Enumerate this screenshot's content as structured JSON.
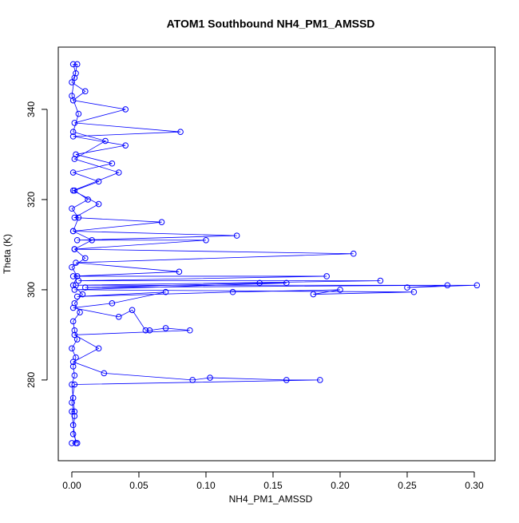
{
  "chart_data": {
    "type": "line",
    "markers": true,
    "title": "ATOM1 Southbound NH4_PM1_AMSSD",
    "x_label": "NH4_PM1_AMSSD",
    "y_label": "Theta (K)",
    "grid": false,
    "xlim": [
      -0.0101,
      0.3155
    ],
    "ylim": [
      262.1,
      353.8
    ],
    "xticks": [
      {
        "value": 0,
        "label": "0.00"
      },
      {
        "value": 0.05,
        "label": "0.05"
      },
      {
        "value": 0.1,
        "label": "0.10"
      },
      {
        "value": 0.15,
        "label": "0.15"
      },
      {
        "value": 0.2,
        "label": "0.20"
      },
      {
        "value": 0.25,
        "label": "0.25"
      },
      {
        "value": 0.3,
        "label": "0.30"
      }
    ],
    "yticks": [
      280,
      300,
      320,
      340
    ],
    "series": [
      {
        "color": "#0000ff",
        "x": [
          0.0,
          0.003,
          0.001,
          0.0,
          0.002,
          0.001,
          0.0,
          0.002,
          0.001,
          0.003,
          0.0,
          0.004,
          0.002,
          0.001,
          0.006,
          0.002,
          0.008,
          0.001,
          0.004,
          0.0,
          0.01,
          0.002,
          0.015,
          0.001,
          0.005,
          0.0,
          0.012,
          0.002,
          0.02,
          0.001,
          0.03,
          0.003,
          0.04,
          0.001,
          0.081,
          0.002,
          0.04,
          0.001,
          0.01,
          0.0,
          0.003,
          0.001,
          0.004,
          0.002,
          0.0,
          0.005,
          0.001,
          0.025,
          0.002,
          0.035,
          0.001,
          0.02,
          0.002,
          0.067,
          0.001,
          0.123,
          0.004,
          0.1,
          0.002,
          0.21,
          0.003,
          0.08,
          0.001,
          0.19,
          0.005,
          0.23,
          0.003,
          0.302,
          0.25,
          0.28,
          0.01,
          0.14,
          0.16,
          0.002,
          0.255,
          0.18,
          0.2,
          0.12,
          0.004,
          0.07,
          0.03,
          0.001,
          0.035,
          0.045,
          0.055,
          0.058,
          0.07,
          0.088,
          0.002,
          0.02,
          0.001,
          0.024,
          0.09,
          0.103,
          0.16,
          0.185,
          0.002,
          0.0,
          0.002,
          0.001,
          0.004
        ],
        "y": [
          266,
          266,
          270,
          273,
          273,
          276,
          279,
          281,
          283,
          285,
          287,
          289,
          291,
          293,
          295,
          297,
          299,
          301,
          303,
          305,
          307,
          309,
          311,
          313,
          316,
          318,
          320,
          322,
          324,
          326,
          328,
          330,
          332,
          334,
          335,
          337,
          340,
          342,
          344,
          346,
          348,
          350,
          350,
          347,
          343,
          339,
          335,
          333,
          329,
          326,
          322,
          319,
          316,
          315,
          313,
          312,
          311,
          311,
          309,
          308,
          306,
          304,
          303,
          303,
          302,
          302,
          301,
          301,
          300.5,
          301,
          300.5,
          301.5,
          301.5,
          300,
          299.5,
          299,
          300,
          299.5,
          298.5,
          299.5,
          297,
          296,
          294,
          295.5,
          291,
          291,
          291.5,
          291,
          290,
          287,
          284,
          281.5,
          280,
          280.5,
          280,
          280,
          279,
          275,
          272,
          268,
          266
        ]
      }
    ]
  }
}
